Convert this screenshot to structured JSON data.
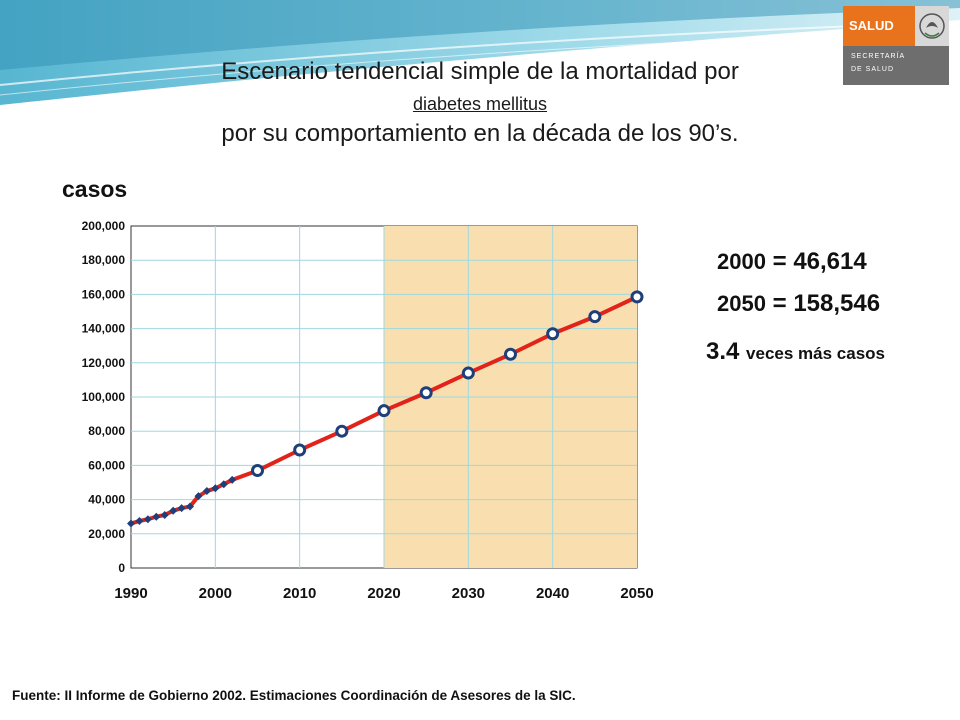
{
  "title": {
    "line1": "Escenario tendencial simple de la mortalidad por",
    "line2": "diabetes mellitus",
    "line3": "por su comportamiento en la década de los 90’s."
  },
  "logo": {
    "brand": "SALUD",
    "text1": "SECRETARÍA",
    "text2": "DE SALUD"
  },
  "stats": {
    "s2000": {
      "year": "2000",
      "eq": "=",
      "value": "46,614"
    },
    "s2050": {
      "year": "2050",
      "eq": "=",
      "value": "158,546"
    },
    "ratio": {
      "value": "3.4",
      "text": "veces más casos"
    }
  },
  "source": "Fuente: II Informe de Gobierno 2002. Estimaciones Coordinación de Asesores de la SIC.",
  "colors": {
    "line": "#e2231a",
    "marker_stroke": "#1f3f7a",
    "projection_band": "#f9dfb0",
    "grid": "#9ed8e0"
  },
  "chart_data": {
    "type": "line",
    "ylabel": "casos",
    "xlabel": "",
    "xlim": [
      1990,
      2050
    ],
    "ylim": [
      0,
      200000
    ],
    "x_ticks": [
      "1990",
      "2000",
      "2010",
      "2020",
      "2030",
      "2040",
      "2050"
    ],
    "y_ticks": [
      "0",
      "20,000",
      "40,000",
      "60,000",
      "80,000",
      "100,000",
      "120,000",
      "140,000",
      "160,000",
      "180,000",
      "200,000"
    ],
    "projection_range": [
      2020,
      2050
    ],
    "grid": true,
    "series": [
      {
        "marker": "diamond",
        "x": [
          1990,
          1991,
          1992,
          1993,
          1994,
          1995,
          1996,
          1997,
          1998,
          1999,
          2000,
          2001,
          2002
        ],
        "y": [
          26000,
          27500,
          28500,
          30000,
          31000,
          33500,
          35000,
          36000,
          42000,
          45000,
          46614,
          49000,
          51500
        ]
      },
      {
        "marker": "circle",
        "x": [
          2005,
          2010,
          2015,
          2020,
          2025,
          2030,
          2035,
          2040,
          2045,
          2050
        ],
        "y": [
          57000,
          69000,
          80000,
          92000,
          102500,
          114000,
          125000,
          137000,
          147000,
          158546
        ]
      }
    ]
  }
}
